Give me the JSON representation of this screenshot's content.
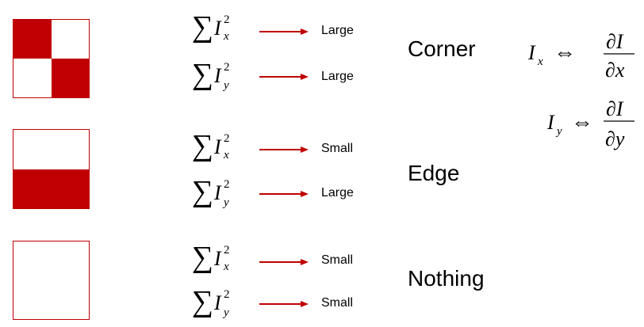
{
  "colors": {
    "accent": "#c00000",
    "text": "#000000",
    "background": "#ffffff"
  },
  "symbols": {
    "sum": "∑",
    "var": "I",
    "sub_x": "x",
    "sub_y": "y",
    "power": "2",
    "equiv": "⇔",
    "partial_num": "∂I",
    "partial_den_x": "∂x",
    "partial_den_y": "∂y"
  },
  "cases": [
    {
      "label": "Corner",
      "patch": "checkerboard",
      "rows": [
        {
          "derivative": "x",
          "magnitude": "Large"
        },
        {
          "derivative": "y",
          "magnitude": "Large"
        }
      ]
    },
    {
      "label": "Edge",
      "patch": "bottom-half",
      "rows": [
        {
          "derivative": "x",
          "magnitude": "Small"
        },
        {
          "derivative": "y",
          "magnitude": "Large"
        }
      ]
    },
    {
      "label": "Nothing",
      "patch": "empty",
      "rows": [
        {
          "derivative": "x",
          "magnitude": "Small"
        },
        {
          "derivative": "y",
          "magnitude": "Small"
        }
      ]
    }
  ]
}
